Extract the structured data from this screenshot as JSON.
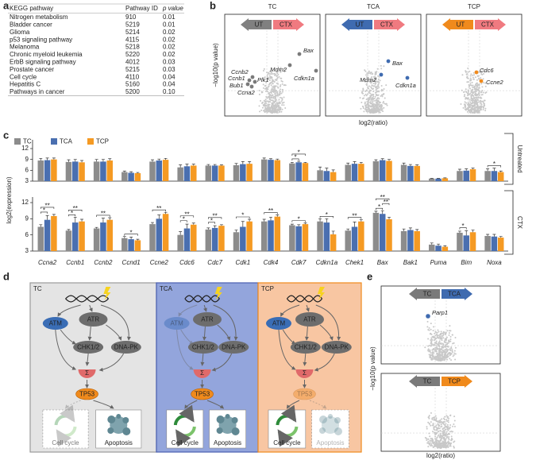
{
  "panel_labels": [
    "a",
    "b",
    "c",
    "d",
    "e"
  ],
  "table": {
    "header": [
      "KEGG pathway",
      "Pathway ID",
      "p value"
    ],
    "rows": [
      [
        "Nitrogen metabolism",
        "910",
        "0.01"
      ],
      [
        "Bladder cancer",
        "5219",
        "0.01"
      ],
      [
        "Glioma",
        "5214",
        "0.02"
      ],
      [
        "p53 signaling pathway",
        "4115",
        "0.02"
      ],
      [
        "Melanoma",
        "5218",
        "0.02"
      ],
      [
        "Chronic myeloid leukemia",
        "5220",
        "0.02"
      ],
      [
        "ErbB signaling pathway",
        "4012",
        "0.03"
      ],
      [
        "Prostate cancer",
        "5215",
        "0.03"
      ],
      [
        "Cell cycle",
        "4110",
        "0.04"
      ],
      [
        "Hepatitis C",
        "5160",
        "0.04"
      ],
      [
        "Pathways in cancer",
        "5200",
        "0.10"
      ]
    ]
  },
  "volcano": {
    "y_label": "−log10(p value)",
    "x_label": "log2(ratio)",
    "panels": [
      {
        "title": "TC",
        "arrows": [
          "UT",
          "CTX"
        ],
        "color": "#7a7a7a",
        "genes": [
          "Bax",
          "Mdm2",
          "Cdkn1a",
          "Ccnb2",
          "Ccnb1",
          "Plk1",
          "Bub1",
          "Ccna2"
        ]
      },
      {
        "title": "TCA",
        "arrows": [
          "UT",
          "CTX"
        ],
        "color": "#3f6bb0",
        "genes": [
          "Bax",
          "Mdm2",
          "Cdkn1a"
        ]
      },
      {
        "title": "TCP",
        "arrows": [
          "UT",
          "CTX"
        ],
        "color": "#f08a1c",
        "genes": [
          "Cdc6",
          "Ccne2"
        ]
      }
    ]
  },
  "chart_data": {
    "type": "bar",
    "y_label": "log2(expression)",
    "categories": [
      "Ccna2",
      "Ccnb1",
      "Ccnb2",
      "Ccnd1",
      "Ccne2",
      "Cdc6",
      "Cdc7",
      "Cdk1",
      "Cdk4",
      "Cdk7",
      "Cdkn1a",
      "Chek1",
      "Bax",
      "Bak1",
      "Puma",
      "Bim",
      "Noxa"
    ],
    "ylim": [
      3,
      12
    ],
    "yticks": [
      3,
      6,
      9,
      12
    ],
    "legend": [
      {
        "name": "TC",
        "color": "#8c8c8c"
      },
      {
        "name": "TCA",
        "color": "#4a6fb0"
      },
      {
        "name": "TCP",
        "color": "#f59a23"
      }
    ],
    "panels": [
      {
        "label": "Untreated",
        "series": [
          {
            "values": [
              8.7,
              8.3,
              8.4,
              5.5,
              8.4,
              6.8,
              7.3,
              7.4,
              9.0,
              7.9,
              6.0,
              7.5,
              8.5,
              7.5,
              3.7,
              5.8,
              5.8
            ],
            "errors": [
              0.6,
              0.6,
              0.6,
              0.3,
              0.5,
              0.7,
              0.3,
              0.5,
              0.4,
              0.3,
              0.9,
              0.5,
              0.4,
              0.5,
              0.1,
              0.5,
              0.6
            ]
          },
          {
            "values": [
              8.8,
              8.4,
              8.4,
              5.3,
              8.7,
              7.1,
              7.3,
              7.7,
              8.9,
              8.2,
              5.8,
              7.8,
              8.8,
              7.2,
              3.7,
              5.9,
              5.8
            ],
            "errors": [
              0.6,
              0.6,
              0.6,
              0.3,
              0.4,
              0.6,
              0.3,
              0.7,
              0.3,
              0.3,
              0.8,
              0.6,
              0.4,
              0.4,
              0.1,
              0.5,
              0.8
            ]
          },
          {
            "values": [
              9.0,
              8.2,
              8.7,
              5.2,
              8.9,
              7.3,
              7.3,
              7.8,
              8.8,
              8.0,
              5.5,
              7.8,
              8.6,
              7.2,
              3.8,
              6.3,
              5.5
            ],
            "errors": [
              0.4,
              0.5,
              0.5,
              0.2,
              0.4,
              0.4,
              0.2,
              0.6,
              0.3,
              0.2,
              0.6,
              0.4,
              0.4,
              0.3,
              0.1,
              0.3,
              0.3
            ]
          }
        ],
        "annotations": [
          {
            "text": "*",
            "category": "Cdk7",
            "pair": [
              "TC",
              "TCA"
            ]
          },
          {
            "text": "*",
            "category": "Cdk7",
            "pair": [
              "TC",
              "TCP"
            ]
          },
          {
            "text": "*",
            "category": "Noxa",
            "pair": [
              "TC",
              "TCP"
            ]
          }
        ]
      },
      {
        "label": "CTX",
        "series": [
          {
            "values": [
              7.5,
              6.8,
              7.2,
              5.4,
              8.0,
              6.0,
              7.0,
              6.5,
              8.5,
              7.8,
              8.5,
              6.8,
              10.1,
              6.7,
              4.2,
              6.4,
              5.8
            ],
            "errors": [
              0.4,
              0.2,
              0.2,
              0.3,
              0.3,
              0.6,
              0.3,
              0.4,
              0.4,
              0.2,
              0.5,
              0.3,
              0.3,
              0.4,
              0.3,
              0.3,
              0.3
            ]
          },
          {
            "values": [
              8.8,
              8.3,
              8.3,
              5.2,
              9.0,
              7.2,
              7.3,
              7.5,
              8.7,
              7.6,
              8.3,
              7.5,
              9.9,
              6.9,
              4.0,
              5.9,
              5.7
            ],
            "errors": [
              0.8,
              1.0,
              0.8,
              0.4,
              0.7,
              0.8,
              0.4,
              1.0,
              0.6,
              0.3,
              0.7,
              0.9,
              0.6,
              0.4,
              0.3,
              0.9,
              0.4
            ]
          },
          {
            "values": [
              9.5,
              8.5,
              8.8,
              5.0,
              9.9,
              7.9,
              7.7,
              8.5,
              9.4,
              8.0,
              6.1,
              8.5,
              8.9,
              6.7,
              3.8,
              6.5,
              5.5
            ],
            "errors": [
              0.3,
              0.4,
              0.4,
              0.2,
              0.3,
              0.3,
              0.2,
              0.4,
              0.3,
              0.2,
              0.6,
              0.3,
              0.4,
              0.3,
              0.2,
              0.4,
              0.2
            ]
          }
        ],
        "annotations": [
          {
            "text": "*",
            "category": "Ccna2",
            "pair": [
              "TC",
              "TCA"
            ]
          },
          {
            "text": "**",
            "category": "Ccna2",
            "pair": [
              "TC",
              "TCP"
            ]
          },
          {
            "text": "*",
            "category": "Ccnb1",
            "pair": [
              "TC",
              "TCA"
            ]
          },
          {
            "text": "**",
            "category": "Ccnb1",
            "pair": [
              "TC",
              "TCP"
            ]
          },
          {
            "text": "**",
            "category": "Ccnb2",
            "pair": [
              "TC",
              "TCP"
            ]
          },
          {
            "text": "*",
            "category": "Ccnd1",
            "pair": [
              "TC",
              "TCP"
            ]
          },
          {
            "text": "**",
            "category": "Ccne2",
            "pair": [
              "TC",
              "TCP"
            ]
          },
          {
            "text": "*",
            "category": "Cdc6",
            "pair": [
              "TC",
              "TCA"
            ]
          },
          {
            "text": "**",
            "category": "Cdc6",
            "pair": [
              "TC",
              "TCP"
            ]
          },
          {
            "text": "*",
            "category": "Cdc7",
            "pair": [
              "TC",
              "TCA"
            ]
          },
          {
            "text": "**",
            "category": "Cdc7",
            "pair": [
              "TC",
              "TCP"
            ]
          },
          {
            "text": "*",
            "category": "Cdk1",
            "pair": [
              "TC",
              "TCP"
            ]
          },
          {
            "text": "**",
            "category": "Cdk4",
            "pair": [
              "TC",
              "TCP"
            ]
          },
          {
            "text": "*",
            "category": "Cdk7",
            "pair": [
              "TC",
              "TCP"
            ]
          },
          {
            "text": "*",
            "category": "Cdkn1a",
            "pair": [
              "TC",
              "TCP"
            ]
          },
          {
            "text": "**",
            "category": "Chek1",
            "pair": [
              "TC",
              "TCP"
            ]
          },
          {
            "text": "*",
            "category": "Bax",
            "pair": [
              "TC",
              "TCA"
            ]
          },
          {
            "text": "**",
            "category": "Bax",
            "pair": [
              "TCA",
              "TCP"
            ]
          },
          {
            "text": "**",
            "category": "Bax",
            "pair": [
              "TC",
              "TCP"
            ]
          },
          {
            "text": "*",
            "category": "Bim",
            "pair": [
              "TC",
              "TCA"
            ]
          }
        ]
      }
    ]
  },
  "diagram": {
    "panels": [
      {
        "title": "TC",
        "nodes": [
          "ATM",
          "ATR",
          "CHK1/2",
          "DNA-PK",
          "Σ",
          "TP53"
        ],
        "outcomes": [
          "Cell cycle",
          "Apoptosis"
        ]
      },
      {
        "title": "TCA",
        "nodes": [
          "ATM",
          "ATR",
          "CHK1/2",
          "DNA-PK",
          "Σ",
          "TP53"
        ],
        "outcomes": [
          "Cell cycle",
          "Apoptosis"
        ]
      },
      {
        "title": "TCP",
        "nodes": [
          "ATM",
          "ATR",
          "CHK1/2",
          "DNA-PK",
          "Σ",
          "TP53"
        ],
        "outcomes": [
          "Cell cycle",
          "Apoptosis"
        ]
      }
    ]
  },
  "volcano_e": {
    "y_label": "−log10(p value)",
    "x_label": "log2(ratio)",
    "panels": [
      {
        "arrows": [
          "TC",
          "TCA"
        ],
        "colors": [
          "#7a7a7a",
          "#3f6bb0"
        ],
        "genes": [
          "Parp1"
        ]
      },
      {
        "arrows": [
          "TC",
          "TCP"
        ],
        "colors": [
          "#7a7a7a",
          "#f08a1c"
        ]
      }
    ]
  }
}
